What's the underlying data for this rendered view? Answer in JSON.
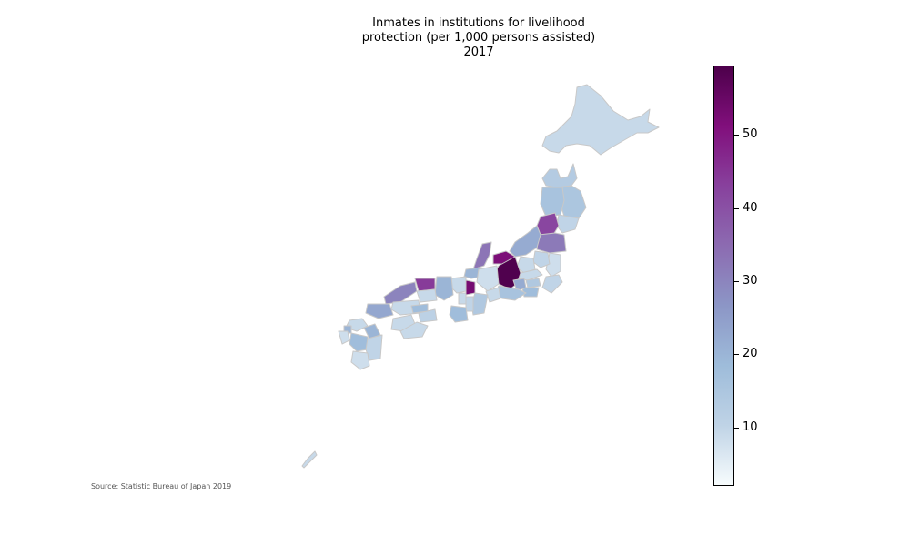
{
  "title": "Inmates in institutions for livelihood\nprotection (per 1,000 persons assisted)\n2017",
  "source": "Source: Statistic Bureau of Japan 2019",
  "colorbar": {
    "min": 2,
    "max": 59.5,
    "ticks": [
      "10",
      "20",
      "30",
      "40",
      "50"
    ],
    "colormap": [
      "#f7fcfd",
      "#bfd3e6",
      "#9ebcda",
      "#8c96c6",
      "#8c6bb1",
      "#88419d",
      "#810f7c",
      "#4d004b"
    ]
  },
  "chart_data": {
    "type": "choropleth",
    "title": "Inmates in institutions for livelihood\nprotection (per 1,000 persons assisted)\n2017",
    "colorbar_range": [
      2,
      59.5
    ],
    "colorbar_ticks": [
      10,
      20,
      30,
      40,
      50
    ],
    "regions": [
      {
        "name": "Hokkaido",
        "value": 9
      },
      {
        "name": "Aomori",
        "value": 13
      },
      {
        "name": "Iwate",
        "value": 15
      },
      {
        "name": "Akita",
        "value": 16
      },
      {
        "name": "Miyagi",
        "value": 10
      },
      {
        "name": "Yamagata",
        "value": 42
      },
      {
        "name": "Fukushima",
        "value": 32
      },
      {
        "name": "Niigata",
        "value": 22
      },
      {
        "name": "Ibaraki",
        "value": 8
      },
      {
        "name": "Tochigi",
        "value": 10
      },
      {
        "name": "Gunma",
        "value": 9
      },
      {
        "name": "Saitama",
        "value": 9
      },
      {
        "name": "Chiba",
        "value": 10
      },
      {
        "name": "Tokyo",
        "value": 14
      },
      {
        "name": "Kanagawa",
        "value": 18
      },
      {
        "name": "Toyama",
        "value": 52
      },
      {
        "name": "Ishikawa",
        "value": 33
      },
      {
        "name": "Fukui",
        "value": 20
      },
      {
        "name": "Nagano",
        "value": 59
      },
      {
        "name": "Yamanashi",
        "value": 22
      },
      {
        "name": "Gifu",
        "value": 8
      },
      {
        "name": "Shizuoka",
        "value": 16
      },
      {
        "name": "Aichi",
        "value": 9
      },
      {
        "name": "Shiga",
        "value": 53
      },
      {
        "name": "Mie",
        "value": 14
      },
      {
        "name": "Kyoto",
        "value": 9
      },
      {
        "name": "Osaka",
        "value": 9
      },
      {
        "name": "Hyogo",
        "value": 20
      },
      {
        "name": "Nara",
        "value": 10
      },
      {
        "name": "Wakayama",
        "value": 18
      },
      {
        "name": "Tottori",
        "value": 44
      },
      {
        "name": "Shimane",
        "value": 30
      },
      {
        "name": "Okayama",
        "value": 9
      },
      {
        "name": "Hiroshima",
        "value": 9
      },
      {
        "name": "Yamaguchi",
        "value": 23
      },
      {
        "name": "Tokushima",
        "value": 11
      },
      {
        "name": "Kagawa",
        "value": 18
      },
      {
        "name": "Ehime",
        "value": 9
      },
      {
        "name": "Kochi",
        "value": 9
      },
      {
        "name": "Fukuoka",
        "value": 9
      },
      {
        "name": "Saga",
        "value": 20
      },
      {
        "name": "Nagasaki",
        "value": 8
      },
      {
        "name": "Kumamoto",
        "value": 18
      },
      {
        "name": "Oita",
        "value": 20
      },
      {
        "name": "Miyazaki",
        "value": 10
      },
      {
        "name": "Kagoshima",
        "value": 8
      },
      {
        "name": "Okinawa",
        "value": 9
      }
    ]
  }
}
